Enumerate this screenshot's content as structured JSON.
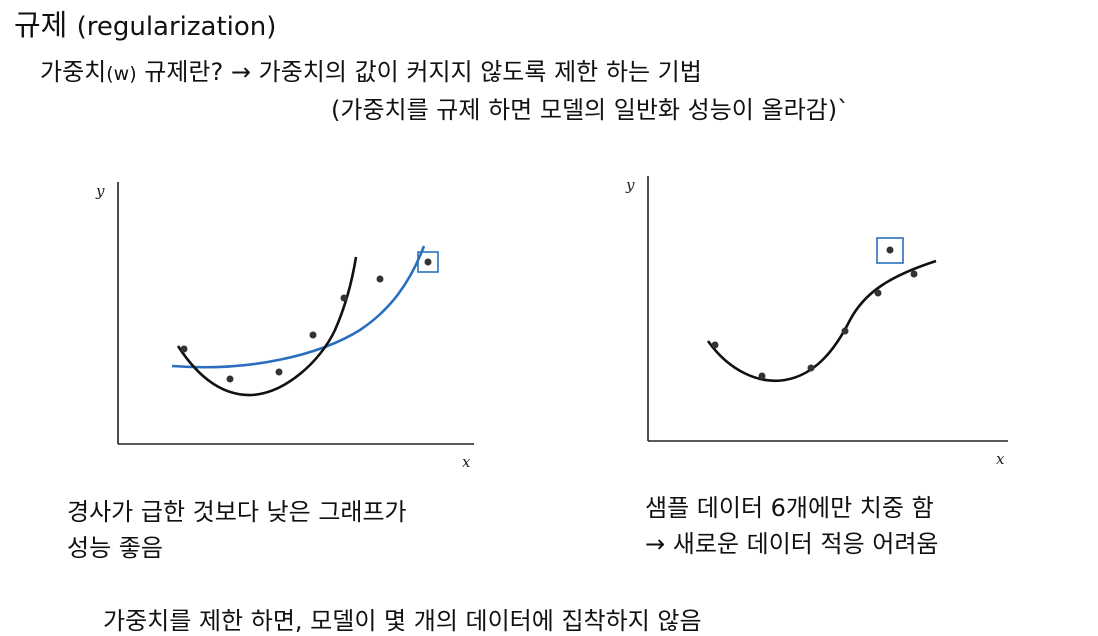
{
  "title": {
    "main": "규제",
    "sub": "(regularization)"
  },
  "definition": {
    "term": "가중치",
    "term_sub": "(w)",
    "term_tail": " 규제란?",
    "arrow": "→",
    "meaning": "가중치의 값이 커지지 않도록 제한 하는 기법",
    "note": "(가중치를 규제 하면 모델의 일반화 성능이 올라감)`"
  },
  "left_plot": {
    "axis_x": "x",
    "axis_y": "y",
    "caption_line1": "경사가 급한 것보다 낮은 그래프가",
    "caption_line2": "성능 좋음",
    "colors": {
      "curve_steep": "#111111",
      "curve_smooth": "#2a6fbf",
      "highlight_box": "#2a6fbf",
      "points": "#333333"
    }
  },
  "right_plot": {
    "axis_x": "x",
    "axis_y": "y",
    "caption_line1": "샘플 데이터 6개에만 치중 함",
    "caption_arrow": "→",
    "caption_line2": "새로운 데이터 적응 어려움",
    "colors": {
      "curve": "#111111",
      "highlight_box": "#2a6fbf",
      "points": "#333333"
    }
  },
  "bottom_note": "가중치를 제한 하면, 모델이 몇 개의 데이터에 집착하지 않음"
}
